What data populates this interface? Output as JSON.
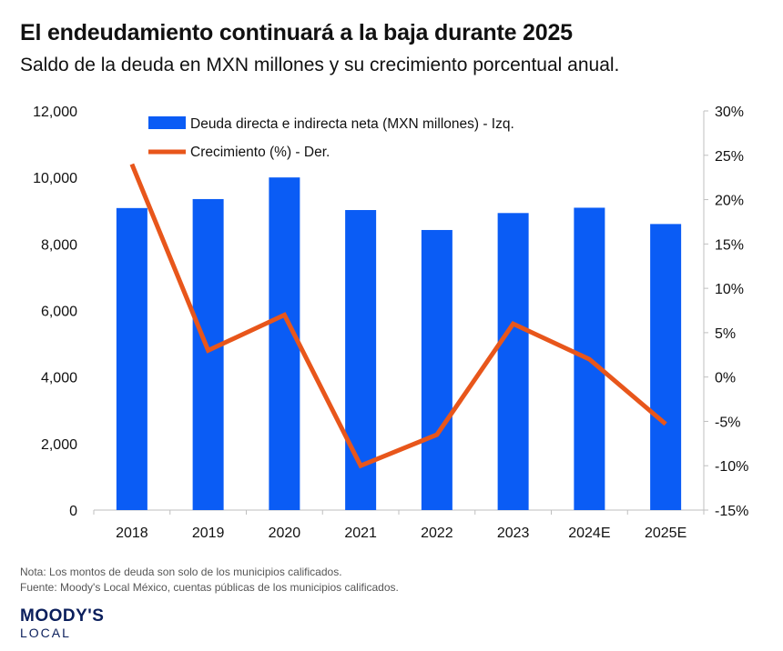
{
  "header": {
    "title": "El endeudamiento continuará a la baja durante 2025",
    "subtitle": "Saldo de la deuda en MXN millones y su crecimiento porcentual anual."
  },
  "footer": {
    "note": "Nota: Los montos de deuda son solo de los municipios calificados.",
    "source": "Fuente: Moody's Local México, cuentas públicas de los municipios calificados.",
    "logo_main": "MOODY'S",
    "logo_sub": "LOCAL"
  },
  "chart_data": {
    "type": "bar",
    "categories": [
      "2018",
      "2019",
      "2020",
      "2021",
      "2022",
      "2023",
      "2024E",
      "2025E"
    ],
    "series": [
      {
        "name": "Deuda directa e indirecta neta (MXN millones) - Izq.",
        "type": "bar",
        "axis": "left",
        "color": "#0a5cf5",
        "values": [
          9080,
          9350,
          10000,
          9020,
          8420,
          8930,
          9090,
          8600
        ]
      },
      {
        "name": "Crecimiento (%) - Der.",
        "type": "line",
        "axis": "right",
        "color": "#e8561b",
        "values": [
          24,
          3,
          7,
          -10,
          -6.5,
          6,
          2,
          -5.3
        ]
      }
    ],
    "left_axis": {
      "min": 0,
      "max": 12000,
      "ticks": [
        0,
        2000,
        4000,
        6000,
        8000,
        10000,
        12000
      ],
      "tick_labels": [
        "0",
        "2,000",
        "4,000",
        "6,000",
        "8,000",
        "10,000",
        "12,000"
      ]
    },
    "right_axis": {
      "min": -15,
      "max": 30,
      "ticks": [
        -15,
        -10,
        -5,
        0,
        5,
        10,
        15,
        20,
        25,
        30
      ],
      "tick_labels": [
        "-15%",
        "-10%",
        "-5%",
        "0%",
        "5%",
        "10%",
        "15%",
        "20%",
        "25%",
        "30%"
      ]
    },
    "grid": false,
    "legend_position": "top-left"
  }
}
